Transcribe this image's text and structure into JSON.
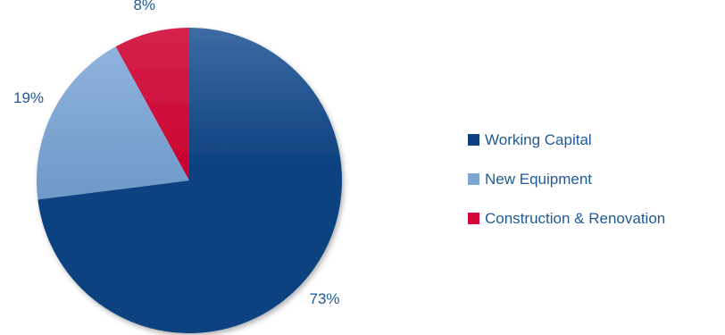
{
  "chart_data": {
    "type": "pie",
    "categories": [
      "Working Capital",
      "New Equipment",
      "Construction & Renovation"
    ],
    "values": [
      73,
      19,
      8
    ],
    "labels": [
      "73%",
      "19%",
      "8%"
    ],
    "colors": [
      "#0d4280",
      "#7ea6d3",
      "#d4093a"
    ],
    "legend_position": "right",
    "title": ""
  }
}
